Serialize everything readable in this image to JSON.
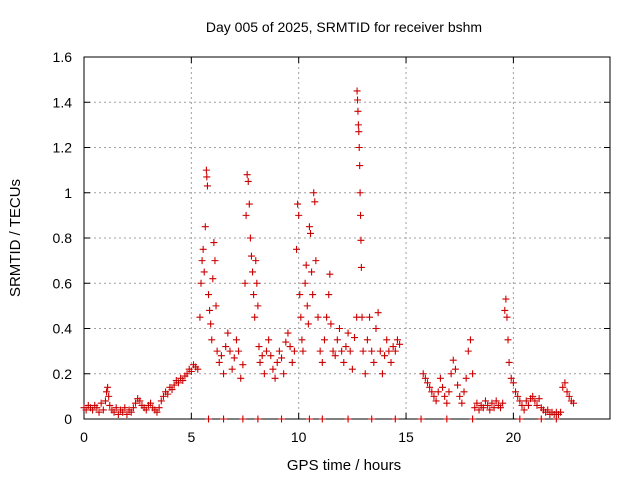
{
  "chart_data": {
    "type": "scatter",
    "title": "Day 005 of 2025, SRMTID for receiver bshm",
    "xlabel": "GPS time / hours",
    "ylabel": "SRMTID / TECUs",
    "xlim": [
      0,
      24.5
    ],
    "ylim": [
      0,
      1.6
    ],
    "xticks": [
      0,
      5,
      10,
      15,
      20
    ],
    "xtick_labels": [
      "0",
      "5",
      "10",
      "15",
      "20"
    ],
    "yticks": [
      0,
      0.2,
      0.4,
      0.6,
      0.8,
      1.0,
      1.2,
      1.4,
      1.6
    ],
    "ytick_labels": [
      "0",
      "0.2",
      "0.4",
      "0.6",
      "0.8",
      "1",
      "1.2",
      "1.4",
      "1.6"
    ],
    "grid": true,
    "marker": "+",
    "color": "#cc0000",
    "series": [
      {
        "name": "SRMTID",
        "points": [
          [
            0.0,
            0.05
          ],
          [
            0.1,
            0.04
          ],
          [
            0.2,
            0.06
          ],
          [
            0.3,
            0.05
          ],
          [
            0.4,
            0.04
          ],
          [
            0.5,
            0.06
          ],
          [
            0.6,
            0.05
          ],
          [
            0.7,
            0.03
          ],
          [
            0.8,
            0.07
          ],
          [
            0.9,
            0.04
          ],
          [
            1.0,
            0.08
          ],
          [
            1.05,
            0.12
          ],
          [
            1.1,
            0.14
          ],
          [
            1.15,
            0.1
          ],
          [
            1.2,
            0.06
          ],
          [
            1.3,
            0.04
          ],
          [
            1.4,
            0.03
          ],
          [
            1.5,
            0.05
          ],
          [
            1.6,
            0.02
          ],
          [
            1.7,
            0.04
          ],
          [
            1.8,
            0.03
          ],
          [
            1.9,
            0.05
          ],
          [
            2.0,
            0.02
          ],
          [
            2.1,
            0.04
          ],
          [
            2.2,
            0.03
          ],
          [
            2.3,
            0.05
          ],
          [
            2.4,
            0.07
          ],
          [
            2.5,
            0.09
          ],
          [
            2.6,
            0.08
          ],
          [
            2.7,
            0.06
          ],
          [
            2.8,
            0.05
          ],
          [
            2.9,
            0.04
          ],
          [
            3.0,
            0.06
          ],
          [
            3.1,
            0.07
          ],
          [
            3.2,
            0.05
          ],
          [
            3.3,
            0.04
          ],
          [
            3.4,
            0.03
          ],
          [
            3.5,
            0.05
          ],
          [
            3.6,
            0.08
          ],
          [
            3.7,
            0.1
          ],
          [
            3.8,
            0.12
          ],
          [
            3.9,
            0.11
          ],
          [
            4.0,
            0.14
          ],
          [
            4.1,
            0.13
          ],
          [
            4.2,
            0.15
          ],
          [
            4.3,
            0.17
          ],
          [
            4.4,
            0.16
          ],
          [
            4.5,
            0.18
          ],
          [
            4.6,
            0.17
          ],
          [
            4.7,
            0.19
          ],
          [
            4.8,
            0.2
          ],
          [
            4.9,
            0.22
          ],
          [
            5.0,
            0.21
          ],
          [
            5.1,
            0.24
          ],
          [
            5.2,
            0.23
          ],
          [
            5.3,
            0.22
          ],
          [
            5.4,
            0.45
          ],
          [
            5.45,
            0.6
          ],
          [
            5.5,
            0.7
          ],
          [
            5.55,
            0.75
          ],
          [
            5.6,
            0.65
          ],
          [
            5.65,
            0.85
          ],
          [
            5.7,
            1.1
          ],
          [
            5.72,
            1.07
          ],
          [
            5.75,
            1.03
          ],
          [
            5.8,
            0.55
          ],
          [
            5.85,
            0.48
          ],
          [
            5.9,
            0.42
          ],
          [
            5.95,
            0.35
          ],
          [
            6.0,
            0.62
          ],
          [
            6.05,
            0.78
          ],
          [
            6.1,
            0.7
          ],
          [
            6.15,
            0.5
          ],
          [
            6.2,
            0.3
          ],
          [
            6.3,
            0.25
          ],
          [
            6.4,
            0.28
          ],
          [
            6.5,
            0.2
          ],
          [
            6.6,
            0.32
          ],
          [
            6.7,
            0.38
          ],
          [
            6.8,
            0.3
          ],
          [
            6.9,
            0.22
          ],
          [
            7.0,
            0.27
          ],
          [
            7.1,
            0.35
          ],
          [
            7.2,
            0.3
          ],
          [
            7.3,
            0.18
          ],
          [
            7.4,
            0.24
          ],
          [
            7.5,
            0.6
          ],
          [
            7.55,
            0.9
          ],
          [
            7.6,
            1.08
          ],
          [
            7.65,
            1.05
          ],
          [
            7.7,
            0.95
          ],
          [
            7.75,
            0.8
          ],
          [
            7.8,
            0.72
          ],
          [
            7.85,
            0.65
          ],
          [
            7.9,
            0.55
          ],
          [
            7.95,
            0.45
          ],
          [
            8.0,
            0.7
          ],
          [
            8.05,
            0.6
          ],
          [
            8.1,
            0.5
          ],
          [
            8.15,
            0.32
          ],
          [
            8.2,
            0.25
          ],
          [
            8.3,
            0.28
          ],
          [
            8.4,
            0.2
          ],
          [
            8.5,
            0.3
          ],
          [
            8.6,
            0.35
          ],
          [
            8.7,
            0.28
          ],
          [
            8.8,
            0.22
          ],
          [
            8.9,
            0.18
          ],
          [
            9.0,
            0.25
          ],
          [
            9.1,
            0.3
          ],
          [
            9.2,
            0.27
          ],
          [
            9.3,
            0.2
          ],
          [
            9.4,
            0.34
          ],
          [
            9.5,
            0.38
          ],
          [
            9.6,
            0.32
          ],
          [
            9.7,
            0.25
          ],
          [
            9.8,
            0.3
          ],
          [
            9.9,
            0.75
          ],
          [
            9.95,
            0.95
          ],
          [
            10.0,
            0.9
          ],
          [
            10.05,
            0.55
          ],
          [
            10.1,
            0.45
          ],
          [
            10.15,
            0.35
          ],
          [
            10.2,
            0.3
          ],
          [
            10.3,
            0.6
          ],
          [
            10.35,
            0.68
          ],
          [
            10.4,
            0.5
          ],
          [
            10.45,
            0.42
          ],
          [
            10.5,
            0.85
          ],
          [
            10.55,
            0.82
          ],
          [
            10.6,
            0.65
          ],
          [
            10.65,
            0.55
          ],
          [
            10.7,
            1.0
          ],
          [
            10.75,
            0.96
          ],
          [
            10.8,
            0.7
          ],
          [
            10.9,
            0.45
          ],
          [
            11.0,
            0.3
          ],
          [
            11.1,
            0.25
          ],
          [
            11.2,
            0.35
          ],
          [
            11.3,
            0.45
          ],
          [
            11.4,
            0.55
          ],
          [
            11.45,
            0.64
          ],
          [
            11.5,
            0.42
          ],
          [
            11.6,
            0.3
          ],
          [
            11.7,
            0.28
          ],
          [
            11.8,
            0.35
          ],
          [
            11.9,
            0.4
          ],
          [
            12.0,
            0.3
          ],
          [
            12.1,
            0.25
          ],
          [
            12.2,
            0.32
          ],
          [
            12.3,
            0.38
          ],
          [
            12.4,
            0.3
          ],
          [
            12.5,
            0.22
          ],
          [
            12.6,
            0.36
          ],
          [
            12.7,
            0.45
          ],
          [
            12.72,
            1.45
          ],
          [
            12.74,
            1.41
          ],
          [
            12.76,
            1.36
          ],
          [
            12.78,
            1.3
          ],
          [
            12.8,
            1.27
          ],
          [
            12.82,
            1.2
          ],
          [
            12.84,
            1.12
          ],
          [
            12.86,
            1.0
          ],
          [
            12.88,
            0.9
          ],
          [
            12.9,
            0.79
          ],
          [
            12.92,
            0.67
          ],
          [
            12.95,
            0.45
          ],
          [
            13.0,
            0.3
          ],
          [
            13.1,
            0.2
          ],
          [
            13.2,
            0.35
          ],
          [
            13.3,
            0.45
          ],
          [
            13.4,
            0.3
          ],
          [
            13.5,
            0.25
          ],
          [
            13.6,
            0.4
          ],
          [
            13.7,
            0.47
          ],
          [
            13.8,
            0.3
          ],
          [
            13.9,
            0.2
          ],
          [
            14.0,
            0.28
          ],
          [
            14.1,
            0.35
          ],
          [
            14.2,
            0.3
          ],
          [
            14.3,
            0.25
          ],
          [
            14.4,
            0.32
          ],
          [
            14.5,
            0.3
          ],
          [
            14.6,
            0.35
          ],
          [
            14.7,
            0.33
          ],
          [
            15.8,
            0.2
          ],
          [
            15.9,
            0.18
          ],
          [
            16.0,
            0.16
          ],
          [
            16.1,
            0.14
          ],
          [
            16.2,
            0.12
          ],
          [
            16.3,
            0.1
          ],
          [
            16.4,
            0.08
          ],
          [
            16.5,
            0.12
          ],
          [
            16.6,
            0.18
          ],
          [
            16.7,
            0.14
          ],
          [
            16.8,
            0.1
          ],
          [
            16.9,
            0.07
          ],
          [
            17.0,
            0.12
          ],
          [
            17.1,
            0.2
          ],
          [
            17.2,
            0.26
          ],
          [
            17.3,
            0.22
          ],
          [
            17.4,
            0.15
          ],
          [
            17.5,
            0.1
          ],
          [
            17.6,
            0.07
          ],
          [
            17.7,
            0.12
          ],
          [
            17.8,
            0.18
          ],
          [
            17.9,
            0.3
          ],
          [
            18.0,
            0.35
          ],
          [
            18.1,
            0.2
          ],
          [
            18.2,
            0.05
          ],
          [
            18.3,
            0.07
          ],
          [
            18.4,
            0.04
          ],
          [
            18.5,
            0.06
          ],
          [
            18.6,
            0.05
          ],
          [
            18.7,
            0.08
          ],
          [
            18.8,
            0.06
          ],
          [
            18.9,
            0.04
          ],
          [
            19.0,
            0.07
          ],
          [
            19.1,
            0.05
          ],
          [
            19.2,
            0.08
          ],
          [
            19.3,
            0.06
          ],
          [
            19.4,
            0.05
          ],
          [
            19.5,
            0.07
          ],
          [
            19.6,
            0.48
          ],
          [
            19.65,
            0.53
          ],
          [
            19.7,
            0.45
          ],
          [
            19.75,
            0.35
          ],
          [
            19.8,
            0.25
          ],
          [
            19.9,
            0.18
          ],
          [
            20.0,
            0.16
          ],
          [
            20.1,
            0.12
          ],
          [
            20.2,
            0.1
          ],
          [
            20.3,
            0.08
          ],
          [
            20.4,
            0.06
          ],
          [
            20.5,
            0.04
          ],
          [
            20.6,
            0.08
          ],
          [
            20.7,
            0.06
          ],
          [
            20.8,
            0.09
          ],
          [
            20.9,
            0.1
          ],
          [
            21.0,
            0.08
          ],
          [
            21.1,
            0.06
          ],
          [
            21.2,
            0.09
          ],
          [
            21.3,
            0.05
          ],
          [
            21.4,
            0.04
          ],
          [
            21.5,
            0.03
          ],
          [
            21.6,
            0.04
          ],
          [
            21.7,
            0.02
          ],
          [
            21.8,
            0.03
          ],
          [
            21.9,
            0.02
          ],
          [
            22.0,
            0.03
          ],
          [
            22.1,
            0.02
          ],
          [
            22.2,
            0.03
          ],
          [
            22.3,
            0.14
          ],
          [
            22.4,
            0.16
          ],
          [
            22.5,
            0.12
          ],
          [
            22.6,
            0.1
          ],
          [
            22.7,
            0.08
          ],
          [
            22.8,
            0.07
          ],
          [
            5.8,
            0.0
          ],
          [
            6.5,
            0.0
          ],
          [
            7.4,
            0.0
          ],
          [
            8.1,
            0.0
          ],
          [
            9.2,
            0.0
          ],
          [
            10.5,
            0.0
          ],
          [
            11.1,
            0.0
          ],
          [
            12.3,
            0.0
          ],
          [
            13.4,
            0.0
          ],
          [
            14.5,
            0.0
          ],
          [
            15.7,
            0.0
          ],
          [
            16.9,
            0.0
          ],
          [
            18.1,
            0.0
          ],
          [
            20.3,
            0.0
          ],
          [
            21.3,
            0.0
          ],
          [
            22.0,
            0.0
          ]
        ]
      }
    ]
  }
}
